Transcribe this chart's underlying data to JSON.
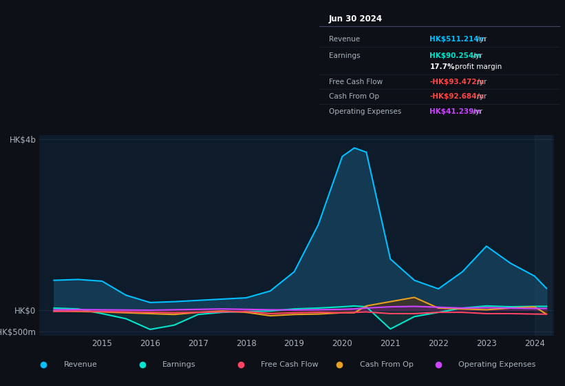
{
  "background_color": "#0d1117",
  "chart_bg": "#0d1b2a",
  "grid_color": "#1e2d3d",
  "text_color": "#aab4be",
  "years": [
    2014.0,
    2014.5,
    2015.0,
    2015.5,
    2016.0,
    2016.5,
    2017.0,
    2017.5,
    2018.0,
    2018.5,
    2019.0,
    2019.5,
    2020.0,
    2020.25,
    2020.5,
    2021.0,
    2021.5,
    2022.0,
    2022.5,
    2023.0,
    2023.5,
    2024.0,
    2024.25
  ],
  "revenue": [
    700,
    720,
    680,
    350,
    180,
    200,
    230,
    260,
    290,
    450,
    900,
    2000,
    3600,
    3800,
    3700,
    1200,
    700,
    500,
    900,
    1500,
    1100,
    800,
    511
  ],
  "earnings": [
    50,
    30,
    -80,
    -200,
    -450,
    -350,
    -100,
    -50,
    -30,
    -20,
    30,
    50,
    80,
    100,
    80,
    -440,
    -150,
    -50,
    50,
    100,
    80,
    90,
    90
  ],
  "free_cash_flow": [
    -30,
    -20,
    -30,
    -40,
    -50,
    -60,
    -50,
    -40,
    -30,
    -80,
    -60,
    -50,
    -60,
    -50,
    -40,
    -80,
    -80,
    -50,
    -50,
    -80,
    -80,
    -90,
    -93
  ],
  "cash_from_op": [
    -20,
    -30,
    -40,
    -60,
    -80,
    -100,
    -50,
    -20,
    -50,
    -130,
    -100,
    -90,
    -60,
    -60,
    100,
    200,
    300,
    50,
    30,
    10,
    50,
    80,
    -93
  ],
  "operating_expenses": [
    10,
    15,
    10,
    5,
    0,
    10,
    20,
    30,
    20,
    10,
    5,
    10,
    20,
    30,
    50,
    80,
    90,
    70,
    50,
    60,
    50,
    40,
    41
  ],
  "ylim": [
    -600,
    4100
  ],
  "yticks": [
    -500,
    0,
    4000
  ],
  "ytick_labels": [
    "-HK$500m",
    "HK$0",
    "HK$4b"
  ],
  "xticks": [
    2015,
    2016,
    2017,
    2018,
    2019,
    2020,
    2021,
    2022,
    2023,
    2024
  ],
  "revenue_color": "#00bfff",
  "revenue_fill": "#1a5276",
  "earnings_color": "#00e5cc",
  "free_cash_flow_color": "#ff4466",
  "cash_from_op_color": "#e8a020",
  "cash_from_op_fill": "#5a3010",
  "operating_expenses_color": "#cc44ff",
  "info_box": {
    "date": "Jun 30 2024",
    "rows": [
      {
        "label": "Revenue",
        "value": "HK$511.214m",
        "value_color": "#00bfff"
      },
      {
        "label": "Earnings",
        "value": "HK$90.254m",
        "value_color": "#00e5cc"
      },
      {
        "label": "",
        "value": "17.7% profit margin",
        "value_color": "#ffffff"
      },
      {
        "label": "Free Cash Flow",
        "value": "-HK$93.472m",
        "value_color": "#ff4444"
      },
      {
        "label": "Cash From Op",
        "value": "-HK$92.684m",
        "value_color": "#ff4444"
      },
      {
        "label": "Operating Expenses",
        "value": "HK$41.239m",
        "value_color": "#cc44ff"
      }
    ]
  },
  "legend": [
    {
      "label": "Revenue",
      "color": "#00bfff"
    },
    {
      "label": "Earnings",
      "color": "#00e5cc"
    },
    {
      "label": "Free Cash Flow",
      "color": "#ff4466"
    },
    {
      "label": "Cash From Op",
      "color": "#e8a020"
    },
    {
      "label": "Operating Expenses",
      "color": "#cc44ff"
    }
  ]
}
